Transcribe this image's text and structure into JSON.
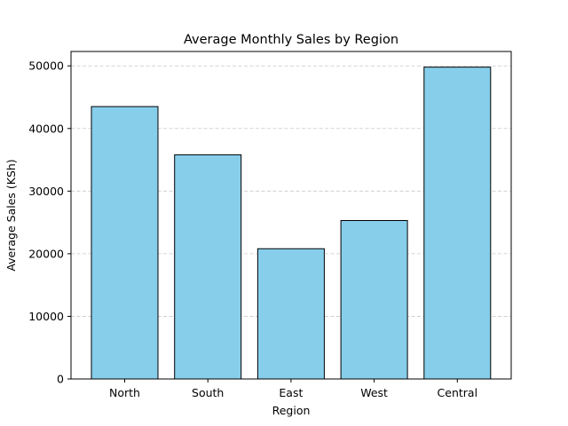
{
  "chart_data": {
    "type": "bar",
    "title": "Average Monthly Sales by Region",
    "xlabel": "Region",
    "ylabel": "Average Sales (KSh)",
    "categories": [
      "North",
      "South",
      "East",
      "West",
      "Central"
    ],
    "values": [
      43500,
      35800,
      20800,
      25300,
      49800
    ],
    "ylim": [
      0,
      52300
    ],
    "yticks": [
      0,
      10000,
      20000,
      30000,
      40000,
      50000
    ],
    "grid": "y-dashed",
    "legend": "none",
    "colors": {
      "bar_fill": "#87ceeb",
      "bar_edge": "#000000",
      "grid": "#c8c8c8",
      "axis": "#000000"
    }
  }
}
